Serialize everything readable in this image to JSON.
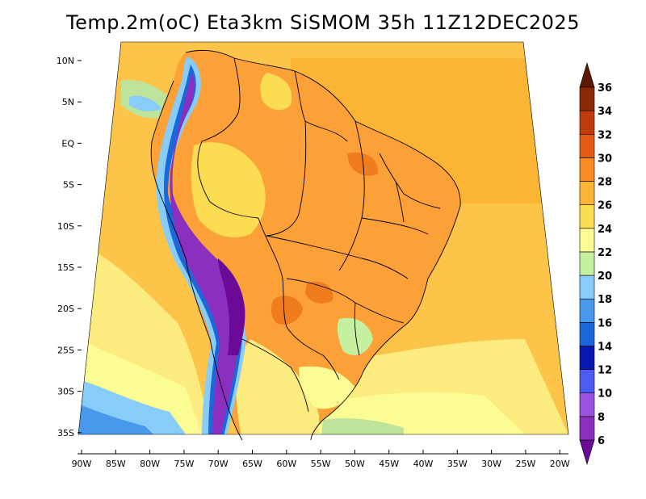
{
  "title": "Temp.2m(oC) Eta3km SiSMOM 35h 11Z12DEC2025",
  "map": {
    "lat_labels": [
      "10N",
      "5N",
      "EQ",
      "5S",
      "10S",
      "15S",
      "20S",
      "25S",
      "30S",
      "35S"
    ],
    "lon_labels": [
      "90W",
      "85W",
      "80W",
      "75W",
      "70W",
      "65W",
      "60W",
      "55W",
      "50W",
      "45W",
      "40W",
      "35W",
      "30W",
      "25W",
      "20W"
    ]
  },
  "colorbar": {
    "labels": [
      "6",
      "8",
      "10",
      "12",
      "14",
      "16",
      "18",
      "20",
      "22",
      "24",
      "26",
      "28",
      "30",
      "32",
      "34",
      "36"
    ],
    "colors": [
      "#6a0a96",
      "#8a2fc0",
      "#9b52e0",
      "#4c5cf0",
      "#0818b0",
      "#1c68d8",
      "#4898ec",
      "#88ccf8",
      "#c4f0a0",
      "#fcfc94",
      "#fcdc50",
      "#fcb434",
      "#f88c24",
      "#e45c14",
      "#c03c0c",
      "#8a2808",
      "#5c1a06"
    ]
  },
  "colors": {
    "ocean_warm": "#fcc448",
    "ocean_cool": "#fcec80",
    "land_hot": "#fca038",
    "border": "#000000"
  }
}
